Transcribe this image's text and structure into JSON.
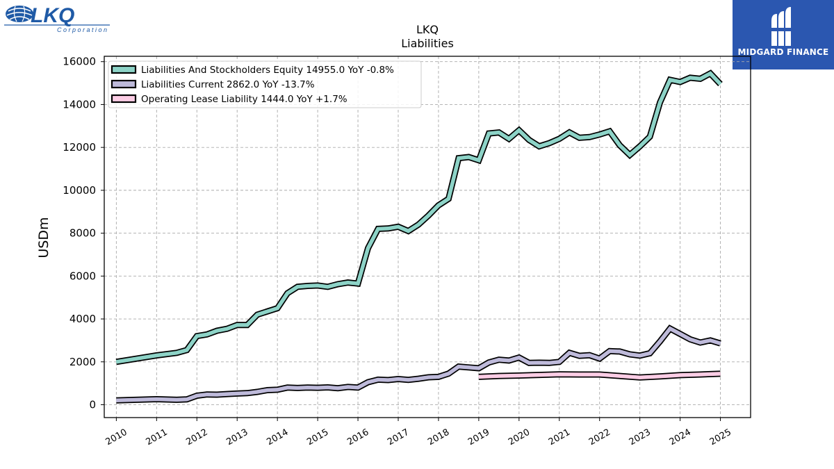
{
  "logo": {
    "name": "LKQ",
    "subtitle": "Corporation"
  },
  "badge": {
    "label": "MIDGARD FINANCE"
  },
  "chart_data": {
    "type": "line",
    "title": "LKQ",
    "subtitle": "Liabilities",
    "ylabel": "USDm",
    "xlabel": "",
    "xlim": [
      2009.7,
      2025.75
    ],
    "ylim": [
      -600,
      16250
    ],
    "yticks": [
      0,
      2000,
      4000,
      6000,
      8000,
      10000,
      12000,
      14000,
      16000
    ],
    "xticks": [
      2010,
      2011,
      2012,
      2013,
      2014,
      2015,
      2016,
      2017,
      2018,
      2019,
      2020,
      2021,
      2022,
      2023,
      2024,
      2025
    ],
    "grid": true,
    "legend_position": "top-left",
    "series": [
      {
        "name": "Liabilities And Stockholders Equity",
        "legend": "Liabilities And Stockholders Equity  14955.0 YoY -0.8%",
        "color": "#8dd3c7",
        "x": [
          2010.0,
          2011.0,
          2011.5,
          2011.75,
          2012.0,
          2012.25,
          2012.5,
          2012.75,
          2013.0,
          2013.25,
          2013.5,
          2013.75,
          2014.0,
          2014.25,
          2014.5,
          2014.75,
          2015.0,
          2015.25,
          2015.5,
          2015.75,
          2016.0,
          2016.25,
          2016.5,
          2016.75,
          2017.0,
          2017.25,
          2017.5,
          2017.75,
          2018.0,
          2018.25,
          2018.5,
          2018.75,
          2019.0,
          2019.25,
          2019.5,
          2019.75,
          2020.0,
          2020.25,
          2020.5,
          2020.75,
          2021.0,
          2021.25,
          2021.5,
          2021.75,
          2022.0,
          2022.25,
          2022.5,
          2022.75,
          2023.0,
          2023.25,
          2023.5,
          2023.75,
          2024.0,
          2024.25,
          2024.5,
          2024.75,
          2025.0
        ],
        "values": [
          2000,
          2300,
          2420,
          2550,
          3200,
          3280,
          3450,
          3540,
          3720,
          3720,
          4200,
          4350,
          4500,
          5200,
          5500,
          5540,
          5560,
          5500,
          5620,
          5700,
          5650,
          7300,
          8200,
          8220,
          8300,
          8100,
          8400,
          8820,
          9300,
          9600,
          11500,
          11550,
          11400,
          12650,
          12700,
          12400,
          12800,
          12350,
          12050,
          12200,
          12400,
          12700,
          12450,
          12480,
          12600,
          12750,
          12100,
          11650,
          12050,
          12500,
          14100,
          15150,
          15050,
          15250,
          15200,
          15450,
          14955
        ]
      },
      {
        "name": "Liabilities Current",
        "legend": "Liabilities Current  2862.0 YoY -13.7%",
        "color": "#bebada",
        "x": [
          2010.0,
          2011.0,
          2011.5,
          2011.75,
          2012.0,
          2012.25,
          2012.5,
          2012.75,
          2013.0,
          2013.25,
          2013.5,
          2013.75,
          2014.0,
          2014.25,
          2014.5,
          2014.75,
          2015.0,
          2015.25,
          2015.5,
          2015.75,
          2016.0,
          2016.25,
          2016.5,
          2016.75,
          2017.0,
          2017.25,
          2017.5,
          2017.75,
          2018.0,
          2018.25,
          2018.5,
          2018.75,
          2019.0,
          2019.25,
          2019.5,
          2019.75,
          2020.0,
          2020.25,
          2020.5,
          2020.75,
          2021.0,
          2021.25,
          2021.5,
          2021.75,
          2022.0,
          2022.25,
          2022.5,
          2022.75,
          2023.0,
          2023.25,
          2023.5,
          2023.75,
          2024.0,
          2024.25,
          2024.5,
          2024.75,
          2025.0
        ],
        "values": [
          200,
          260,
          230,
          250,
          420,
          480,
          470,
          500,
          520,
          540,
          600,
          680,
          700,
          800,
          780,
          800,
          790,
          810,
          770,
          830,
          800,
          1050,
          1170,
          1150,
          1200,
          1160,
          1210,
          1280,
          1300,
          1450,
          1780,
          1740,
          1700,
          1970,
          2100,
          2060,
          2200,
          1950,
          1960,
          1950,
          2000,
          2420,
          2280,
          2310,
          2150,
          2500,
          2480,
          2350,
          2290,
          2400,
          2950,
          3550,
          3300,
          3050,
          2900,
          3000,
          2862
        ]
      },
      {
        "name": "Operating Lease Liability",
        "legend": "Operating Lease Liability  1444.0 YoY +1.7%",
        "color": "#fccde5",
        "x": [
          2019.0,
          2019.5,
          2020.0,
          2020.5,
          2021.0,
          2021.5,
          2022.0,
          2022.5,
          2023.0,
          2023.5,
          2024.0,
          2024.5,
          2025.0
        ],
        "values": [
          1300,
          1340,
          1360,
          1390,
          1420,
          1410,
          1410,
          1340,
          1270,
          1320,
          1380,
          1410,
          1444
        ]
      }
    ]
  }
}
